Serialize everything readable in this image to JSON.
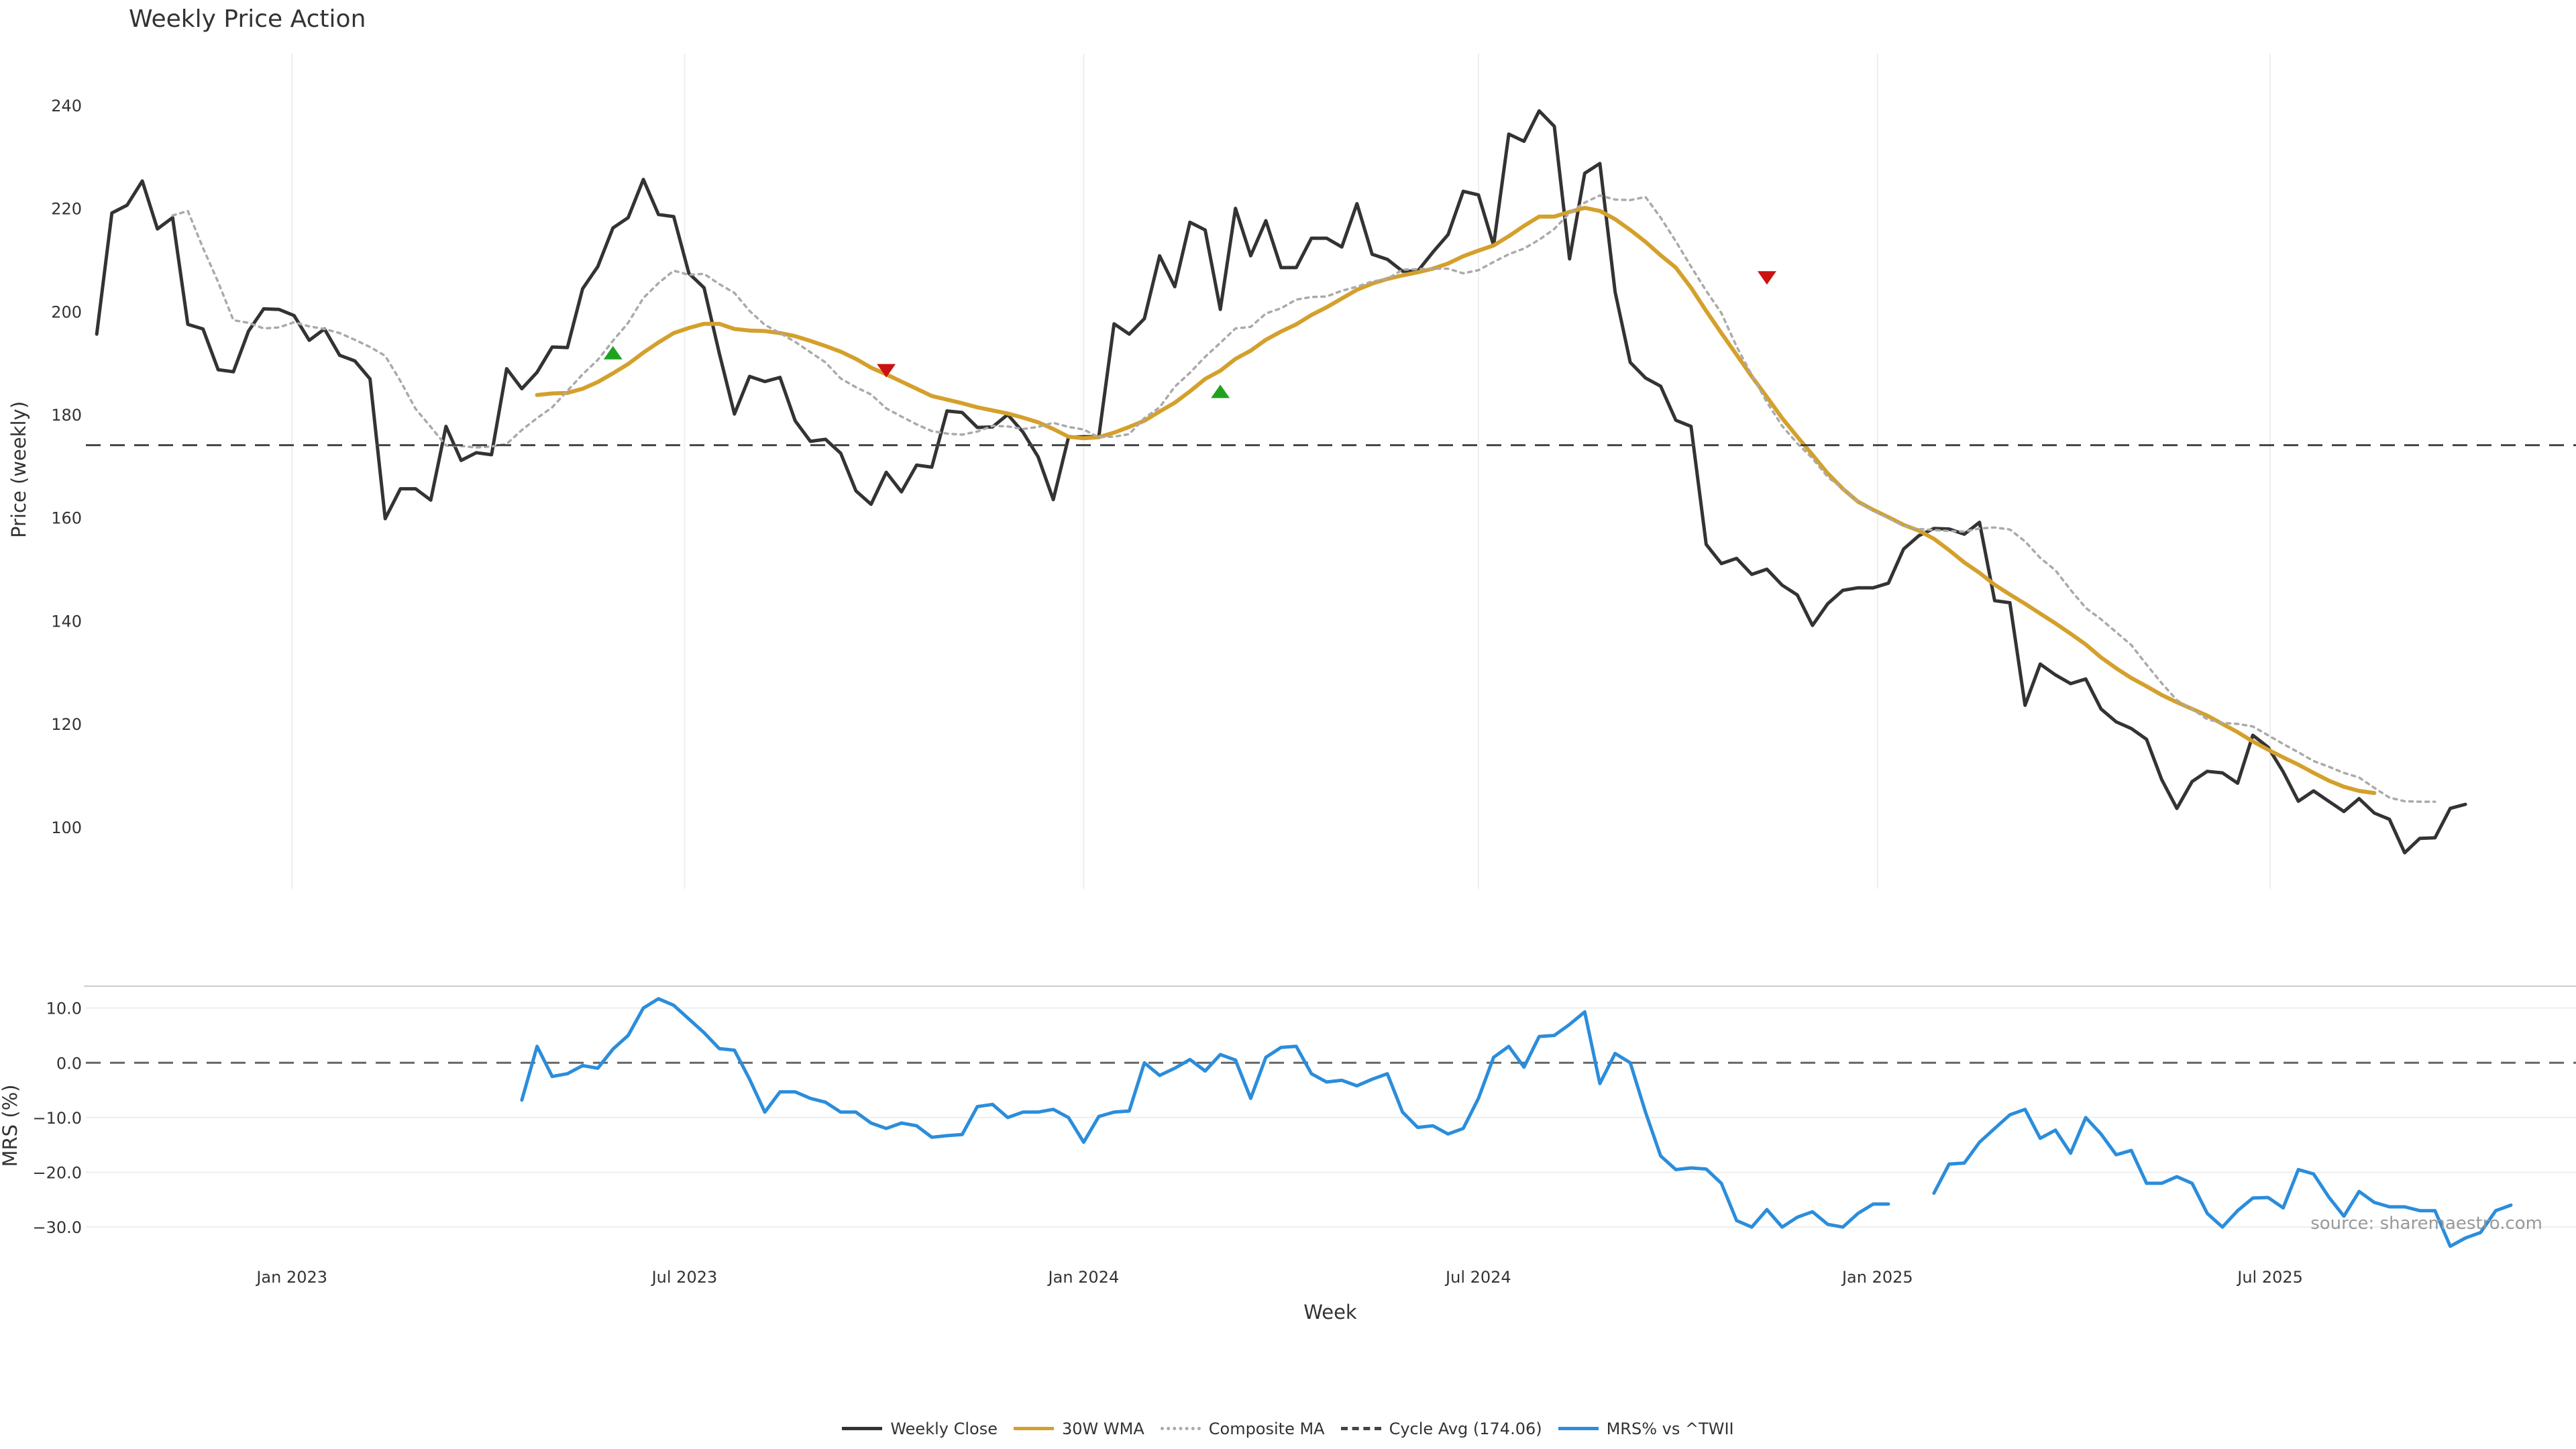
{
  "chart_data": [
    {
      "type": "line",
      "title": "Weekly Price Action",
      "ylabel": "Price (weekly)",
      "ylim": [
        88,
        250
      ],
      "yticks": [
        100,
        120,
        140,
        160,
        180,
        200,
        220,
        240
      ],
      "x_start": "2022-10-03",
      "x_step_days": 7,
      "x_range": [
        "2022-09-28",
        "2025-11-19"
      ],
      "grid": "x only",
      "series": [
        {
          "name": "Weekly Close",
          "color": "#333333",
          "style": "solid",
          "values": [
            195.6,
            219.1,
            220.6,
            225.3,
            216.0,
            218.2,
            197.5,
            196.6,
            188.7,
            188.3,
            196.2,
            200.5,
            200.4,
            199.2,
            194.4,
            196.6,
            191.5,
            190.4,
            186.9,
            159.8,
            165.6,
            165.6,
            163.4,
            177.7,
            171.1,
            172.6,
            172.2,
            188.9,
            185.0,
            188.2,
            193.1,
            193.0,
            204.4,
            208.7,
            216.2,
            218.2,
            225.6,
            218.8,
            218.4,
            207.4,
            204.6,
            191.9,
            180.1,
            187.4,
            186.4,
            187.2,
            178.8,
            174.8,
            175.2,
            172.5,
            165.2,
            162.6,
            168.8,
            165.0,
            170.2,
            169.8,
            180.7,
            180.4,
            177.5,
            177.6,
            180.0,
            176.6,
            171.8,
            163.5,
            175.6,
            175.7,
            175.7,
            197.6,
            195.6,
            198.6,
            210.8,
            204.8,
            217.3,
            215.8,
            200.4,
            220.0,
            210.8,
            217.6,
            208.5,
            208.5,
            214.2,
            214.2,
            212.5,
            220.9,
            211.1,
            210.1,
            207.8,
            207.8,
            211.5,
            214.9,
            223.3,
            222.6,
            212.8,
            234.4,
            233.0,
            238.9,
            235.9,
            210.2,
            226.8,
            228.7,
            203.8,
            190.1,
            187.1,
            185.5,
            178.9,
            177.7,
            154.8,
            151.1,
            152.1,
            149.0,
            150.0,
            146.9,
            145.0,
            139.1,
            143.3,
            145.9,
            146.4,
            146.4,
            147.3,
            153.9,
            156.5,
            157.9,
            157.8,
            156.8,
            159.1,
            143.9,
            143.5,
            123.6,
            131.6,
            129.5,
            127.8,
            128.7,
            122.9,
            120.4,
            119.1,
            117.0,
            109.2,
            103.6,
            108.8,
            110.8,
            110.5,
            108.5,
            117.8,
            115.5,
            110.7,
            105.0,
            107.0,
            105.0,
            103.0,
            105.5,
            102.7,
            101.5,
            95.0,
            97.8,
            97.9,
            103.6,
            104.4
          ]
        },
        {
          "name": "30W WMA",
          "color": "#D4A02C",
          "style": "solid",
          "start_index": 29,
          "values": [
            183.8,
            184.1,
            184.2,
            185.0,
            186.3,
            188.0,
            189.8,
            192.0,
            194.0,
            195.8,
            196.8,
            197.6,
            197.6,
            196.6,
            196.3,
            196.2,
            195.8,
            195.2,
            194.3,
            193.3,
            192.2,
            190.8,
            189.1,
            187.8,
            186.4,
            185.0,
            183.6,
            182.9,
            182.2,
            181.4,
            180.8,
            180.2,
            179.4,
            178.5,
            177.2,
            175.7,
            175.4,
            175.6,
            176.5,
            177.6,
            178.8,
            180.6,
            182.3,
            184.5,
            186.9,
            188.5,
            190.8,
            192.4,
            194.5,
            196.1,
            197.5,
            199.3,
            200.8,
            202.5,
            204.2,
            205.4,
            206.3,
            207.0,
            207.6,
            208.3,
            209.3,
            210.7,
            211.8,
            212.8,
            214.6,
            216.6,
            218.4,
            218.4,
            219.3,
            220.1,
            219.5,
            217.9,
            215.8,
            213.5,
            210.9,
            208.5,
            204.6,
            200.1,
            195.8,
            191.6,
            187.4,
            183.4,
            179.3,
            175.7,
            172.2,
            168.6,
            165.6,
            163.1,
            161.5,
            160.1,
            158.6,
            157.5,
            155.9,
            153.7,
            151.3,
            149.3,
            147.0,
            145.1,
            143.3,
            141.4,
            139.5,
            137.5,
            135.4,
            132.9,
            130.8,
            128.9,
            127.3,
            125.6,
            124.2,
            122.9,
            121.6,
            120.0,
            118.4,
            116.6,
            115.0,
            113.5,
            112.1,
            110.5,
            109.0,
            107.8,
            107.0,
            106.6
          ]
        },
        {
          "name": "Composite MA",
          "color": "#AAAAAA",
          "style": "dotted",
          "start_index": 5,
          "values": [
            218.6,
            219.5,
            212.3,
            205.7,
            198.3,
            197.8,
            196.7,
            196.9,
            197.9,
            197.1,
            196.6,
            195.8,
            194.5,
            193.1,
            191.4,
            186.5,
            181.1,
            177.6,
            174.0,
            173.9,
            173.6,
            173.8,
            174.3,
            177.0,
            179.3,
            181.4,
            184.6,
            187.8,
            190.6,
            194.3,
            197.8,
            202.6,
            205.5,
            207.9,
            207.1,
            207.3,
            205.3,
            203.6,
            200.1,
            197.4,
            195.8,
            194.1,
            192.1,
            190.1,
            187.0,
            185.3,
            183.9,
            181.2,
            179.6,
            178.1,
            176.8,
            176.3,
            176.1,
            176.7,
            177.8,
            177.7,
            177.2,
            177.6,
            178.4,
            177.6,
            177.1,
            175.6,
            175.7,
            176.2,
            179.3,
            181.4,
            185.4,
            188.1,
            191.2,
            193.9,
            196.7,
            197.0,
            199.6,
            200.6,
            202.3,
            202.8,
            202.9,
            204.0,
            204.8,
            205.8,
            206.3,
            208.1,
            208.2,
            208.3,
            208.3,
            207.4,
            208.0,
            209.6,
            211.1,
            212.2,
            213.9,
            216.0,
            219.1,
            221.1,
            222.5,
            221.7,
            221.6,
            222.2,
            218.2,
            213.6,
            208.7,
            204.0,
            199.7,
            193.2,
            187.7,
            182.4,
            177.8,
            174.4,
            171.5,
            167.9,
            165.6,
            163.1,
            161.3,
            159.9,
            158.4,
            157.8,
            157.6,
            157.4,
            157.3,
            157.9,
            158.1,
            157.7,
            155.4,
            152.2,
            149.8,
            146.0,
            142.5,
            140.3,
            137.8,
            135.3,
            131.5,
            127.9,
            124.6,
            122.9,
            120.9,
            120.2,
            120.0,
            119.5,
            117.8,
            116.1,
            114.5,
            112.8,
            111.7,
            110.5,
            109.6,
            107.6,
            105.7,
            105.0,
            104.9,
            104.9
          ]
        },
        {
          "name": "Cycle Avg (174.06)",
          "color": "#444444",
          "style": "dashed",
          "value": 174.06
        }
      ],
      "markers": [
        {
          "type": "buy",
          "x": "2023-05-29",
          "y": 192.0,
          "color": "#1FA31F"
        },
        {
          "type": "sell",
          "x": "2023-10-02",
          "y": 188.5,
          "color": "#CC1111"
        },
        {
          "type": "buy",
          "x": "2024-03-04",
          "y": 184.5,
          "color": "#1FA31F"
        },
        {
          "type": "sell",
          "x": "2024-11-11",
          "y": 206.5,
          "color": "#CC1111"
        }
      ]
    },
    {
      "type": "line",
      "ylabel": "MRS (%)",
      "xlabel": "Week",
      "ylim": [
        -35,
        14
      ],
      "yticks": [
        10.0,
        0.0,
        -10.0,
        -20.0,
        -30.0
      ],
      "yticklabels": [
        "10.0",
        "0.0",
        "−10.0",
        "−20.0",
        "−30.0"
      ],
      "xticks": [
        "2023-01-01",
        "2023-07-01",
        "2024-01-01",
        "2024-07-01",
        "2025-01-01",
        "2025-07-01"
      ],
      "xticklabels": [
        "Jan 2023",
        "Jul 2023",
        "Jan 2024",
        "Jul 2024",
        "Jan 2025",
        "Jul 2025"
      ],
      "grid": "y only",
      "zero_line": "dashed",
      "series": [
        {
          "name": "MRS% vs ^TWII",
          "color": "#2B8DDB",
          "style": "solid",
          "start_index": 28,
          "values": [
            -6.8,
            3.0,
            -2.5,
            -2.0,
            -0.5,
            -1.0,
            2.5,
            5.0,
            10.0,
            11.7,
            10.5,
            8.0,
            5.5,
            2.6,
            2.3,
            -3.0,
            -9.0,
            -5.3,
            -5.3,
            -6.5,
            -7.2,
            -9.0,
            -9.0,
            -11.0,
            -12.0,
            -11.0,
            -11.5,
            -13.6,
            -13.3,
            -13.1,
            -8.0,
            -7.6,
            -10.0,
            -9.0,
            -9.0,
            -8.5,
            -10.0,
            -14.5,
            -9.8,
            -9.0,
            -8.8,
            0.0,
            -2.3,
            -1.0,
            0.6,
            -1.5,
            1.5,
            0.5,
            -6.5,
            1.0,
            2.8,
            3.0,
            -2.0,
            -3.5,
            -3.2,
            -4.2,
            -3.0,
            -2.0,
            -9.0,
            -11.8,
            -11.5,
            -13.0,
            -12.0,
            -6.5,
            1.0,
            3.0,
            -0.8,
            4.8,
            5.0,
            7.0,
            9.3,
            -3.8,
            1.7,
            0.0,
            -9.0,
            -17.0,
            -19.5,
            -19.2,
            -19.4,
            -22.0,
            -28.8,
            -30.0,
            -26.8,
            -30.0,
            -28.2,
            -27.2,
            -29.5,
            -30.0,
            -27.5,
            -25.8,
            -25.8,
            null,
            null,
            -23.8,
            -18.5,
            -18.3,
            -14.5,
            -12.0,
            -9.5,
            -8.5,
            -13.8,
            -12.3,
            -16.5,
            -10.0,
            -13.0,
            -16.8,
            -16.0,
            -22.0,
            -22.0,
            -20.8,
            -22.0,
            -27.5,
            -30.0,
            -27.0,
            -24.7,
            -24.6,
            -26.5,
            -19.5,
            -20.3,
            -24.5,
            -28.0,
            -23.5,
            -25.5,
            -26.3,
            -26.3,
            -27.0,
            -27.0,
            -33.5,
            -32.0,
            -31.0,
            -27.0,
            -26.0
          ]
        }
      ],
      "annotation": "source: sharemaestro.com"
    }
  ]
}
